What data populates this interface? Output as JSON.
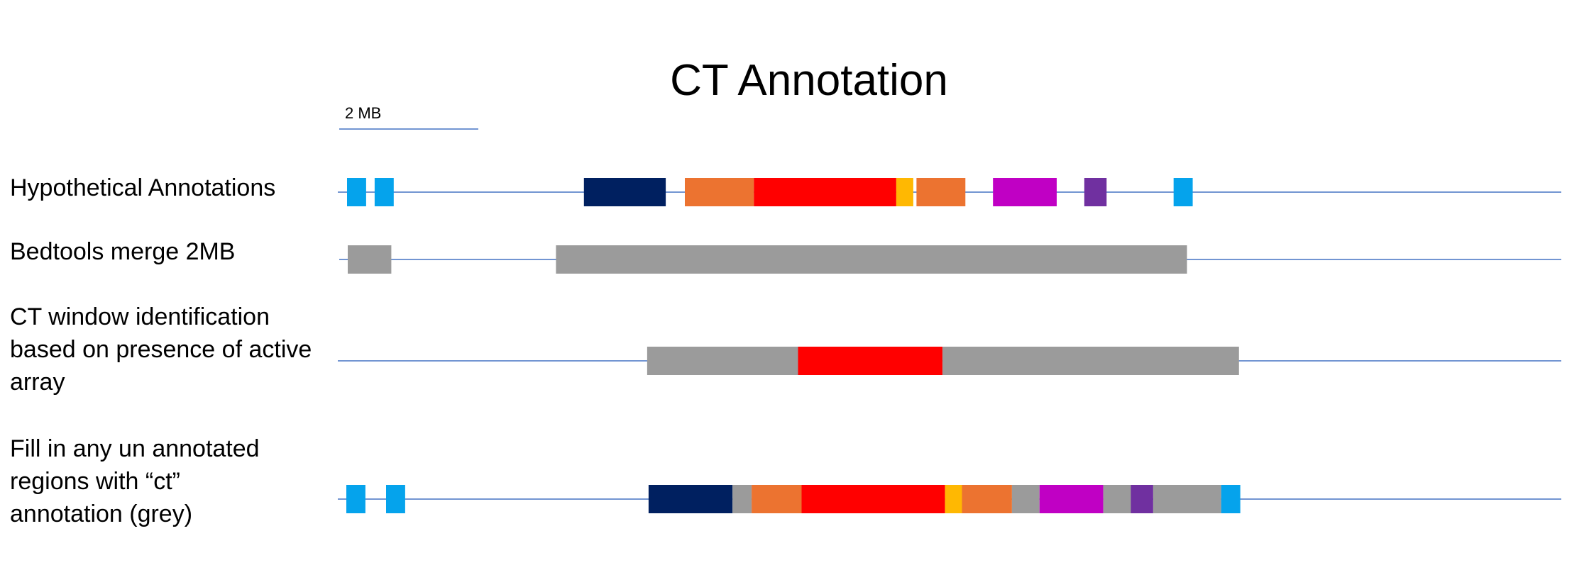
{
  "title": "CT Annotation",
  "scale_bar": {
    "label": "2 MB"
  },
  "colors": {
    "light-blue": "#05a3ec",
    "navy": "#002060",
    "orange": "#ec7330",
    "red": "#ff0000",
    "amber": "#ffb802",
    "magenta": "#c000c4",
    "purple": "#7030a0",
    "grey": "#9b9b9b",
    "axis-line": "#4472c4"
  },
  "rows": [
    {
      "id": "hypothetical-annotations",
      "label_lines": [
        "Hypothetical Annotations"
      ],
      "segments": [
        {
          "start": 0.2,
          "end": 2.0,
          "color": "light-blue"
        },
        {
          "start": 2.8,
          "end": 4.6,
          "color": "light-blue"
        },
        {
          "start": 22.5,
          "end": 30.2,
          "color": "navy"
        },
        {
          "start": 32.0,
          "end": 38.5,
          "color": "orange"
        },
        {
          "start": 38.5,
          "end": 51.9,
          "color": "red"
        },
        {
          "start": 51.9,
          "end": 53.5,
          "color": "amber"
        },
        {
          "start": 53.8,
          "end": 58.4,
          "color": "orange"
        },
        {
          "start": 61.0,
          "end": 67.0,
          "color": "magenta"
        },
        {
          "start": 69.6,
          "end": 71.7,
          "color": "purple"
        },
        {
          "start": 78.0,
          "end": 79.8,
          "color": "light-blue"
        }
      ]
    },
    {
      "id": "bedtools-merge",
      "label_lines": [
        "Bedtools merge 2MB"
      ],
      "segments": [
        {
          "start": 0.8,
          "end": 4.9,
          "color": "grey"
        },
        {
          "start": 20.4,
          "end": 79.8,
          "color": "grey"
        }
      ]
    },
    {
      "id": "ct-window-identification",
      "label_lines": [
        "CT window identification",
        "based on presence of active",
        "array"
      ],
      "segments": [
        {
          "start": 20.3,
          "end": 34.5,
          "color": "grey"
        },
        {
          "start": 34.5,
          "end": 48.1,
          "color": "red"
        },
        {
          "start": 48.1,
          "end": 76.0,
          "color": "grey"
        }
      ]
    },
    {
      "id": "fill-ct-annotation",
      "label_lines": [
        "Fill in any un annotated",
        "regions with “ct”",
        "annotation (grey)"
      ],
      "segments": [
        {
          "start": 0.2,
          "end": 2.0,
          "color": "light-blue"
        },
        {
          "start": 2.8,
          "end": 4.6,
          "color": "light-blue"
        },
        {
          "start": 20.3,
          "end": 28.2,
          "color": "navy"
        },
        {
          "start": 28.2,
          "end": 30.0,
          "color": "grey"
        },
        {
          "start": 30.0,
          "end": 34.7,
          "color": "orange"
        },
        {
          "start": 34.7,
          "end": 48.2,
          "color": "red"
        },
        {
          "start": 48.2,
          "end": 49.8,
          "color": "amber"
        },
        {
          "start": 49.8,
          "end": 54.5,
          "color": "orange"
        },
        {
          "start": 54.5,
          "end": 57.1,
          "color": "grey"
        },
        {
          "start": 57.1,
          "end": 63.1,
          "color": "magenta"
        },
        {
          "start": 63.1,
          "end": 65.7,
          "color": "grey"
        },
        {
          "start": 65.7,
          "end": 67.8,
          "color": "purple"
        },
        {
          "start": 67.8,
          "end": 74.2,
          "color": "grey"
        },
        {
          "start": 74.2,
          "end": 76.0,
          "color": "light-blue"
        }
      ]
    }
  ]
}
